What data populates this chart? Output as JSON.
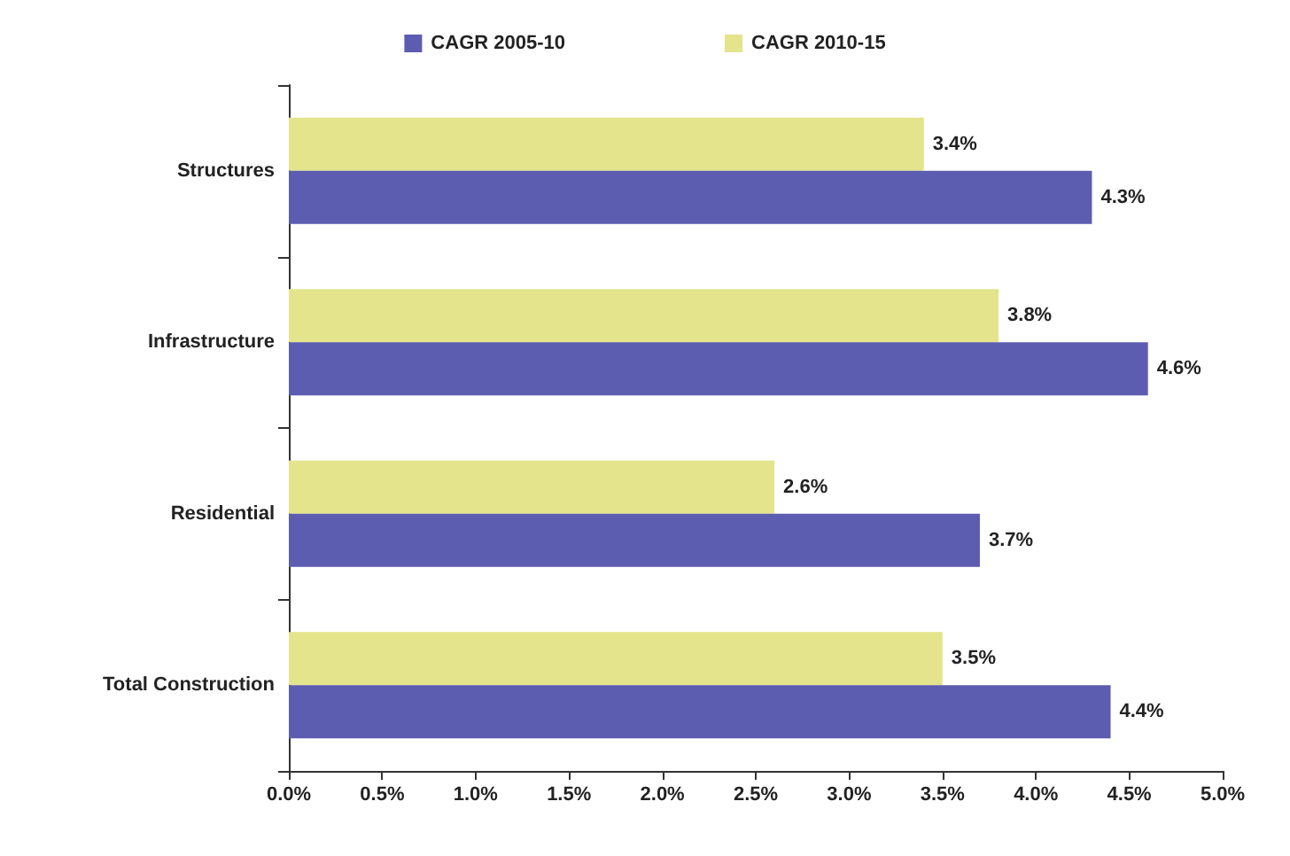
{
  "chart_data": {
    "type": "bar",
    "orientation": "horizontal",
    "categories": [
      "Structures",
      "Infrastructure",
      "Residential",
      "Total Construction"
    ],
    "series": [
      {
        "name": "CAGR 2005-10",
        "color": "#5c5cb0",
        "values": [
          4.3,
          4.6,
          3.7,
          4.4
        ],
        "value_labels": [
          "4.3%",
          "4.6%",
          "3.7%",
          "4.4%"
        ]
      },
      {
        "name": "CAGR 2010-15",
        "color": "#e4e48c",
        "values": [
          3.4,
          3.8,
          2.6,
          3.5
        ],
        "value_labels": [
          "3.4%",
          "3.8%",
          "2.6%",
          "3.5%"
        ]
      }
    ],
    "xlim": [
      0,
      5
    ],
    "xticks": [
      {
        "value": 0,
        "label": "0.0%"
      },
      {
        "value": 0.5,
        "label": "0.5%"
      },
      {
        "value": 1,
        "label": "1.0%"
      },
      {
        "value": 1.5,
        "label": "1.5%"
      },
      {
        "value": 2,
        "label": "2.0%"
      },
      {
        "value": 2.5,
        "label": "2.5%"
      },
      {
        "value": 3,
        "label": "3.0%"
      },
      {
        "value": 3.5,
        "label": "3.5%"
      },
      {
        "value": 4,
        "label": "4.0%"
      },
      {
        "value": 4.5,
        "label": "4.5%"
      },
      {
        "value": 5,
        "label": "5.0%"
      }
    ],
    "grid": false,
    "legend": "top"
  }
}
